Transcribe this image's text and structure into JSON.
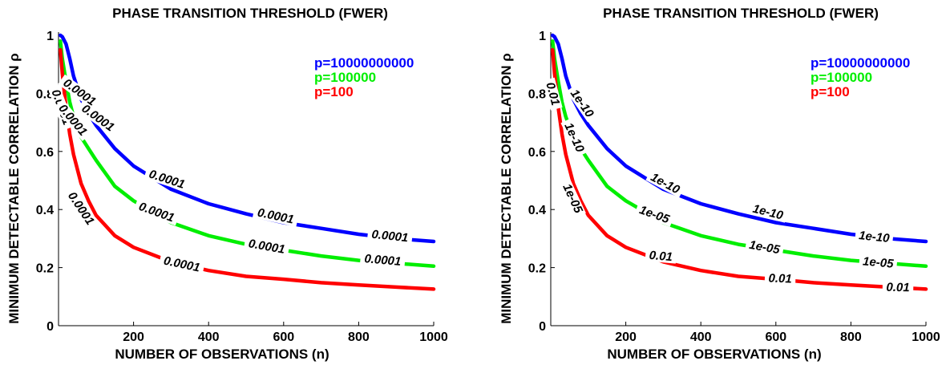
{
  "chart_data": [
    {
      "type": "line",
      "title": "PHASE TRANSITION THRESHOLD (FWER)",
      "xlabel": "NUMBER OF OBSERVATIONS (n)",
      "ylabel": "MINIMUM DETECTABLE CORRELATION ρ",
      "xlim": [
        0,
        1000
      ],
      "ylim": [
        0,
        1
      ],
      "xticks": [
        "200",
        "400",
        "600",
        "800",
        "1000"
      ],
      "yticks": [
        "0",
        "0.2",
        "0.4",
        "0.6",
        "0.8",
        "1"
      ],
      "legend_position": "top-right",
      "series": [
        {
          "name": "p=10000000000",
          "color": "#0000ff",
          "x": [
            5,
            10,
            20,
            30,
            40,
            60,
            80,
            100,
            150,
            200,
            300,
            400,
            500,
            600,
            700,
            800,
            900,
            1000
          ],
          "y": [
            1.0,
            0.995,
            0.97,
            0.92,
            0.86,
            0.78,
            0.73,
            0.69,
            0.61,
            0.55,
            0.47,
            0.42,
            0.385,
            0.355,
            0.335,
            0.315,
            0.3,
            0.29
          ]
        },
        {
          "name": "p=100000",
          "color": "#00ee00",
          "x": [
            5,
            10,
            20,
            30,
            40,
            60,
            80,
            100,
            150,
            200,
            300,
            400,
            500,
            600,
            700,
            800,
            900,
            1000
          ],
          "y": [
            0.98,
            0.92,
            0.84,
            0.77,
            0.72,
            0.65,
            0.61,
            0.57,
            0.48,
            0.43,
            0.355,
            0.31,
            0.28,
            0.26,
            0.24,
            0.225,
            0.215,
            0.205
          ]
        },
        {
          "name": "p=100",
          "color": "#ff0000",
          "x": [
            5,
            10,
            20,
            30,
            40,
            60,
            80,
            100,
            150,
            200,
            300,
            400,
            500,
            600,
            700,
            800,
            900,
            1000
          ],
          "y": [
            0.95,
            0.87,
            0.75,
            0.66,
            0.59,
            0.49,
            0.43,
            0.38,
            0.31,
            0.27,
            0.22,
            0.19,
            0.17,
            0.16,
            0.148,
            0.14,
            0.133,
            0.126
          ]
        }
      ],
      "contour_labels": [
        "0.0001",
        "0.0001",
        "0.0001",
        "0.0001",
        "0.0001",
        "0.0001",
        "0.0001",
        "0.0001",
        "0.0001",
        "0.0001",
        "0.0001",
        "0.0001"
      ]
    },
    {
      "type": "line",
      "title": "PHASE TRANSITION THRESHOLD (FWER)",
      "xlabel": "NUMBER OF OBSERVATIONS (n)",
      "ylabel": "MINIMUM DETECTABLE CORRELATION ρ",
      "xlim": [
        0,
        1000
      ],
      "ylim": [
        0,
        1
      ],
      "xticks": [
        "200",
        "400",
        "600",
        "800",
        "1000"
      ],
      "yticks": [
        "0",
        "0.2",
        "0.4",
        "0.6",
        "0.8",
        "1"
      ],
      "legend_position": "top-right",
      "series": [
        {
          "name": "p=10000000000",
          "color": "#0000ff",
          "x": [
            5,
            10,
            20,
            30,
            40,
            60,
            80,
            100,
            150,
            200,
            300,
            400,
            500,
            600,
            700,
            800,
            900,
            1000
          ],
          "y": [
            1.0,
            0.995,
            0.97,
            0.92,
            0.86,
            0.78,
            0.73,
            0.69,
            0.61,
            0.55,
            0.47,
            0.42,
            0.385,
            0.355,
            0.335,
            0.315,
            0.3,
            0.29
          ]
        },
        {
          "name": "p=100000",
          "color": "#00ee00",
          "x": [
            5,
            10,
            20,
            30,
            40,
            60,
            80,
            100,
            150,
            200,
            300,
            400,
            500,
            600,
            700,
            800,
            900,
            1000
          ],
          "y": [
            0.98,
            0.92,
            0.84,
            0.77,
            0.72,
            0.65,
            0.61,
            0.57,
            0.48,
            0.43,
            0.355,
            0.31,
            0.28,
            0.26,
            0.24,
            0.225,
            0.215,
            0.205
          ]
        },
        {
          "name": "p=100",
          "color": "#ff0000",
          "x": [
            5,
            10,
            20,
            30,
            40,
            60,
            80,
            100,
            150,
            200,
            300,
            400,
            500,
            600,
            700,
            800,
            900,
            1000
          ],
          "y": [
            0.95,
            0.87,
            0.75,
            0.66,
            0.59,
            0.49,
            0.43,
            0.38,
            0.31,
            0.27,
            0.22,
            0.19,
            0.17,
            0.16,
            0.148,
            0.14,
            0.133,
            0.126
          ]
        }
      ],
      "contour_labels": [
        "1e-10",
        "1e-10",
        "1e-10",
        "1e-10",
        "1e-10",
        "1e-05",
        "1e-05",
        "1e-05",
        "1e-05",
        "0.01",
        "0.01",
        "0.01",
        "0.01"
      ]
    }
  ]
}
